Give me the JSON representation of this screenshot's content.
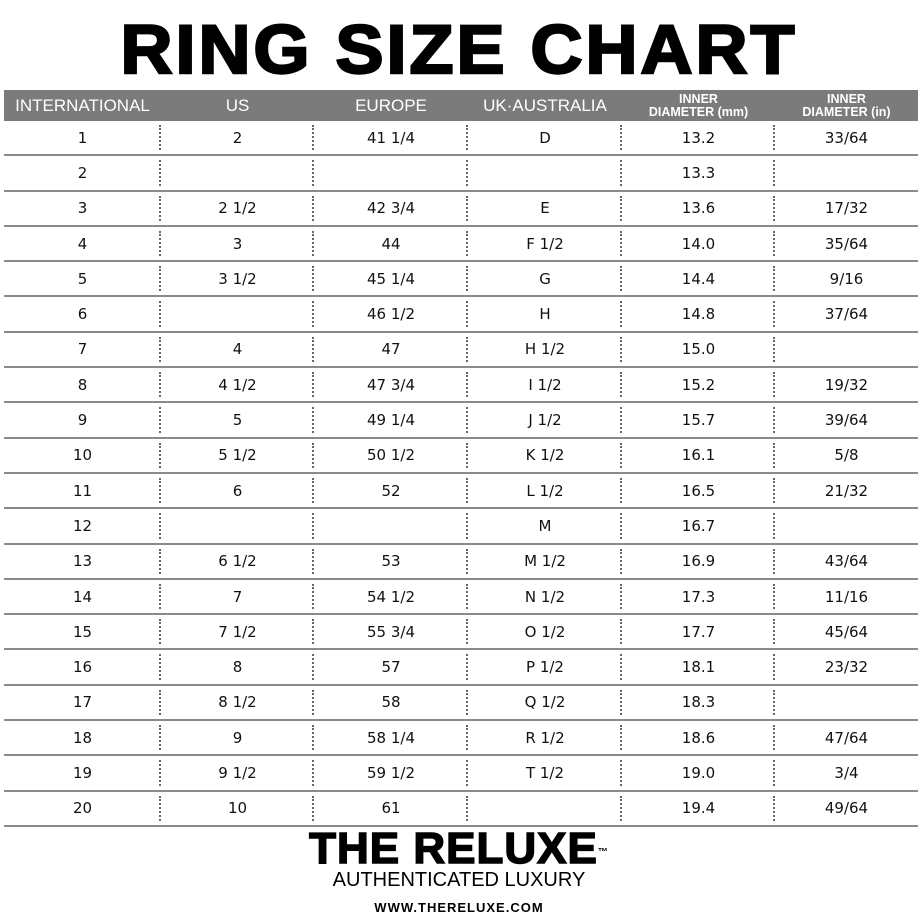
{
  "title": "RING SIZE CHART",
  "headers": [
    {
      "line1": "",
      "line2": "INTERNATIONAL"
    },
    {
      "line1": "",
      "line2": "US"
    },
    {
      "line1": "",
      "line2": "EUROPE"
    },
    {
      "line1": "",
      "line2": "UK·AUSTRALIA"
    },
    {
      "line1": "INNER",
      "line2": "DIAMETER (mm)"
    },
    {
      "line1": "INNER",
      "line2": "DIAMETER (in)"
    }
  ],
  "rows": [
    [
      "1",
      "2",
      "41 1/4",
      "D",
      "13.2",
      "33/64"
    ],
    [
      "2",
      "",
      "",
      "",
      "13.3",
      ""
    ],
    [
      "3",
      "2 1/2",
      "42 3/4",
      "E",
      "13.6",
      "17/32"
    ],
    [
      "4",
      "3",
      "44",
      "F 1/2",
      "14.0",
      "35/64"
    ],
    [
      "5",
      "3 1/2",
      "45 1/4",
      "G",
      "14.4",
      "9/16"
    ],
    [
      "6",
      "",
      "46 1/2",
      "H",
      "14.8",
      "37/64"
    ],
    [
      "7",
      "4",
      "47",
      "H 1/2",
      "15.0",
      ""
    ],
    [
      "8",
      "4 1/2",
      "47 3/4",
      "I 1/2",
      "15.2",
      "19/32"
    ],
    [
      "9",
      "5",
      "49 1/4",
      "J 1/2",
      "15.7",
      "39/64"
    ],
    [
      "10",
      "5 1/2",
      "50 1/2",
      "K 1/2",
      "16.1",
      "5/8"
    ],
    [
      "11",
      "6",
      "52",
      "L 1/2",
      "16.5",
      "21/32"
    ],
    [
      "12",
      "",
      "",
      "M",
      "16.7",
      ""
    ],
    [
      "13",
      "6 1/2",
      "53",
      "M 1/2",
      "16.9",
      "43/64"
    ],
    [
      "14",
      "7",
      "54 1/2",
      "N 1/2",
      "17.3",
      "11/16"
    ],
    [
      "15",
      "7 1/2",
      "55 3/4",
      "O 1/2",
      "17.7",
      "45/64"
    ],
    [
      "16",
      "8",
      "57",
      "P 1/2",
      "18.1",
      "23/32"
    ],
    [
      "17",
      "8 1/2",
      "58",
      "Q 1/2",
      "18.3",
      ""
    ],
    [
      "18",
      "9",
      "58 1/4",
      "R 1/2",
      "18.6",
      "47/64"
    ],
    [
      "19",
      "9 1/2",
      "59 1/2",
      "T 1/2",
      "19.0",
      "3/4"
    ],
    [
      "20",
      "10",
      "61",
      "",
      "19.4",
      "49/64"
    ]
  ],
  "brand": {
    "name": "THE RELUXE",
    "trademark": "™",
    "tagline": "AUTHENTICATED LUXURY",
    "url": "WWW.THERELUXE.COM"
  },
  "colors": {
    "header_bg": "#7b7b7b",
    "row_line": "#8a8a8a"
  }
}
